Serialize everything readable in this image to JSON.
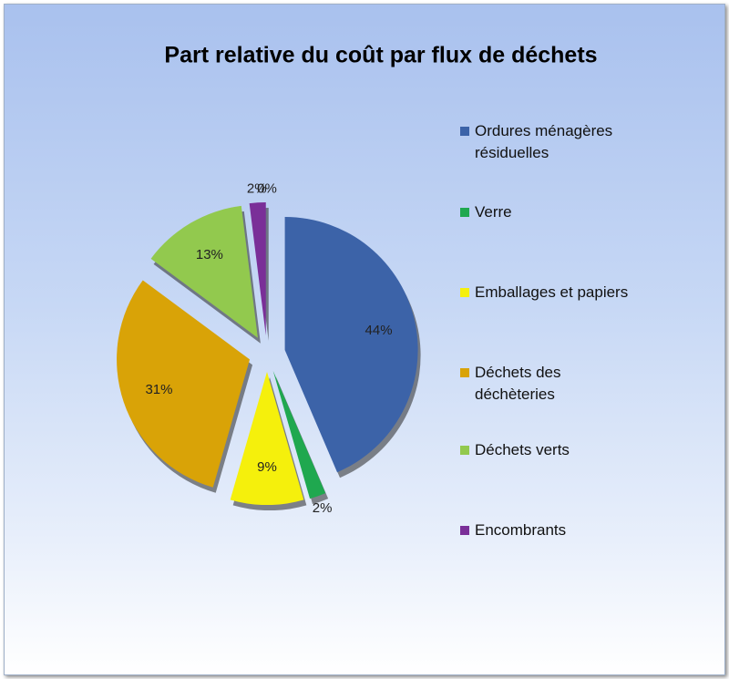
{
  "chart_data": {
    "type": "pie",
    "title": "Part relative du coût par flux de déchets",
    "categories": [
      "Ordures ménagères résiduelles",
      "Verre",
      "Emballages et papiers",
      "Déchets des déchèteries",
      "Déchets verts",
      "Encombrants",
      null
    ],
    "values": [
      44,
      2,
      9,
      31,
      13,
      2,
      0
    ],
    "value_labels": [
      "44%",
      "2%",
      "9%",
      "31%",
      "13%",
      "2%",
      "0%"
    ],
    "colors": [
      "#3c63a8",
      "#1fa84f",
      "#f5f00c",
      "#d9a307",
      "#92c94e",
      "#7a2f98"
    ],
    "legend": "right"
  }
}
